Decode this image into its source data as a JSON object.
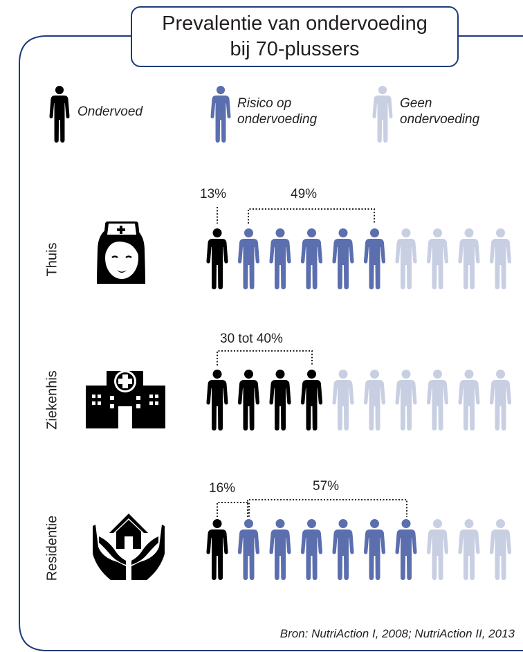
{
  "title": [
    "Prevalentie van ondervoeding",
    "bij 70-plussers"
  ],
  "legend": [
    {
      "id": "under",
      "lines": [
        "Ondervoed"
      ],
      "color": "#000000",
      "icon": "person-icon"
    },
    {
      "id": "risk",
      "lines": [
        "Risico op",
        "ondervoeding"
      ],
      "color": "#5b6eae",
      "icon": "person-icon"
    },
    {
      "id": "none",
      "lines": [
        "Geen",
        "ondervoeding"
      ],
      "color": "#c8cfe2",
      "icon": "person-icon"
    }
  ],
  "chart_data": {
    "type": "pictogram",
    "categories": [
      "Thuis",
      "Ziekenhis",
      "Residentie"
    ],
    "icons": [
      "nurse-icon",
      "hospital-icon",
      "house-hands-icon"
    ],
    "series": [
      {
        "name": "Ondervoed",
        "values": [
          13,
          35,
          16
        ]
      },
      {
        "name": "Risico op ondervoeding",
        "values": [
          49,
          0,
          57
        ]
      }
    ],
    "labels": [
      {
        "category": "Thuis",
        "texts": [
          "13%",
          "49%"
        ]
      },
      {
        "category": "Ziekenhis",
        "texts": [
          "30 tot 40%"
        ]
      },
      {
        "category": "Residentie",
        "texts": [
          "16%",
          "57%"
        ]
      }
    ],
    "pictogram_rows": [
      {
        "category": "Thuis",
        "black": 1.5,
        "blue": 4.5,
        "light": 4
      },
      {
        "category": "Ziekenhis",
        "black": 4,
        "blue": 0,
        "light": 6
      },
      {
        "category": "Residentie",
        "black": 1.5,
        "blue": 5.5,
        "light": 3
      }
    ],
    "persons_per_row": 10
  },
  "source": "Bron: NutriAction I, 2008; NutriAction II, 2013"
}
